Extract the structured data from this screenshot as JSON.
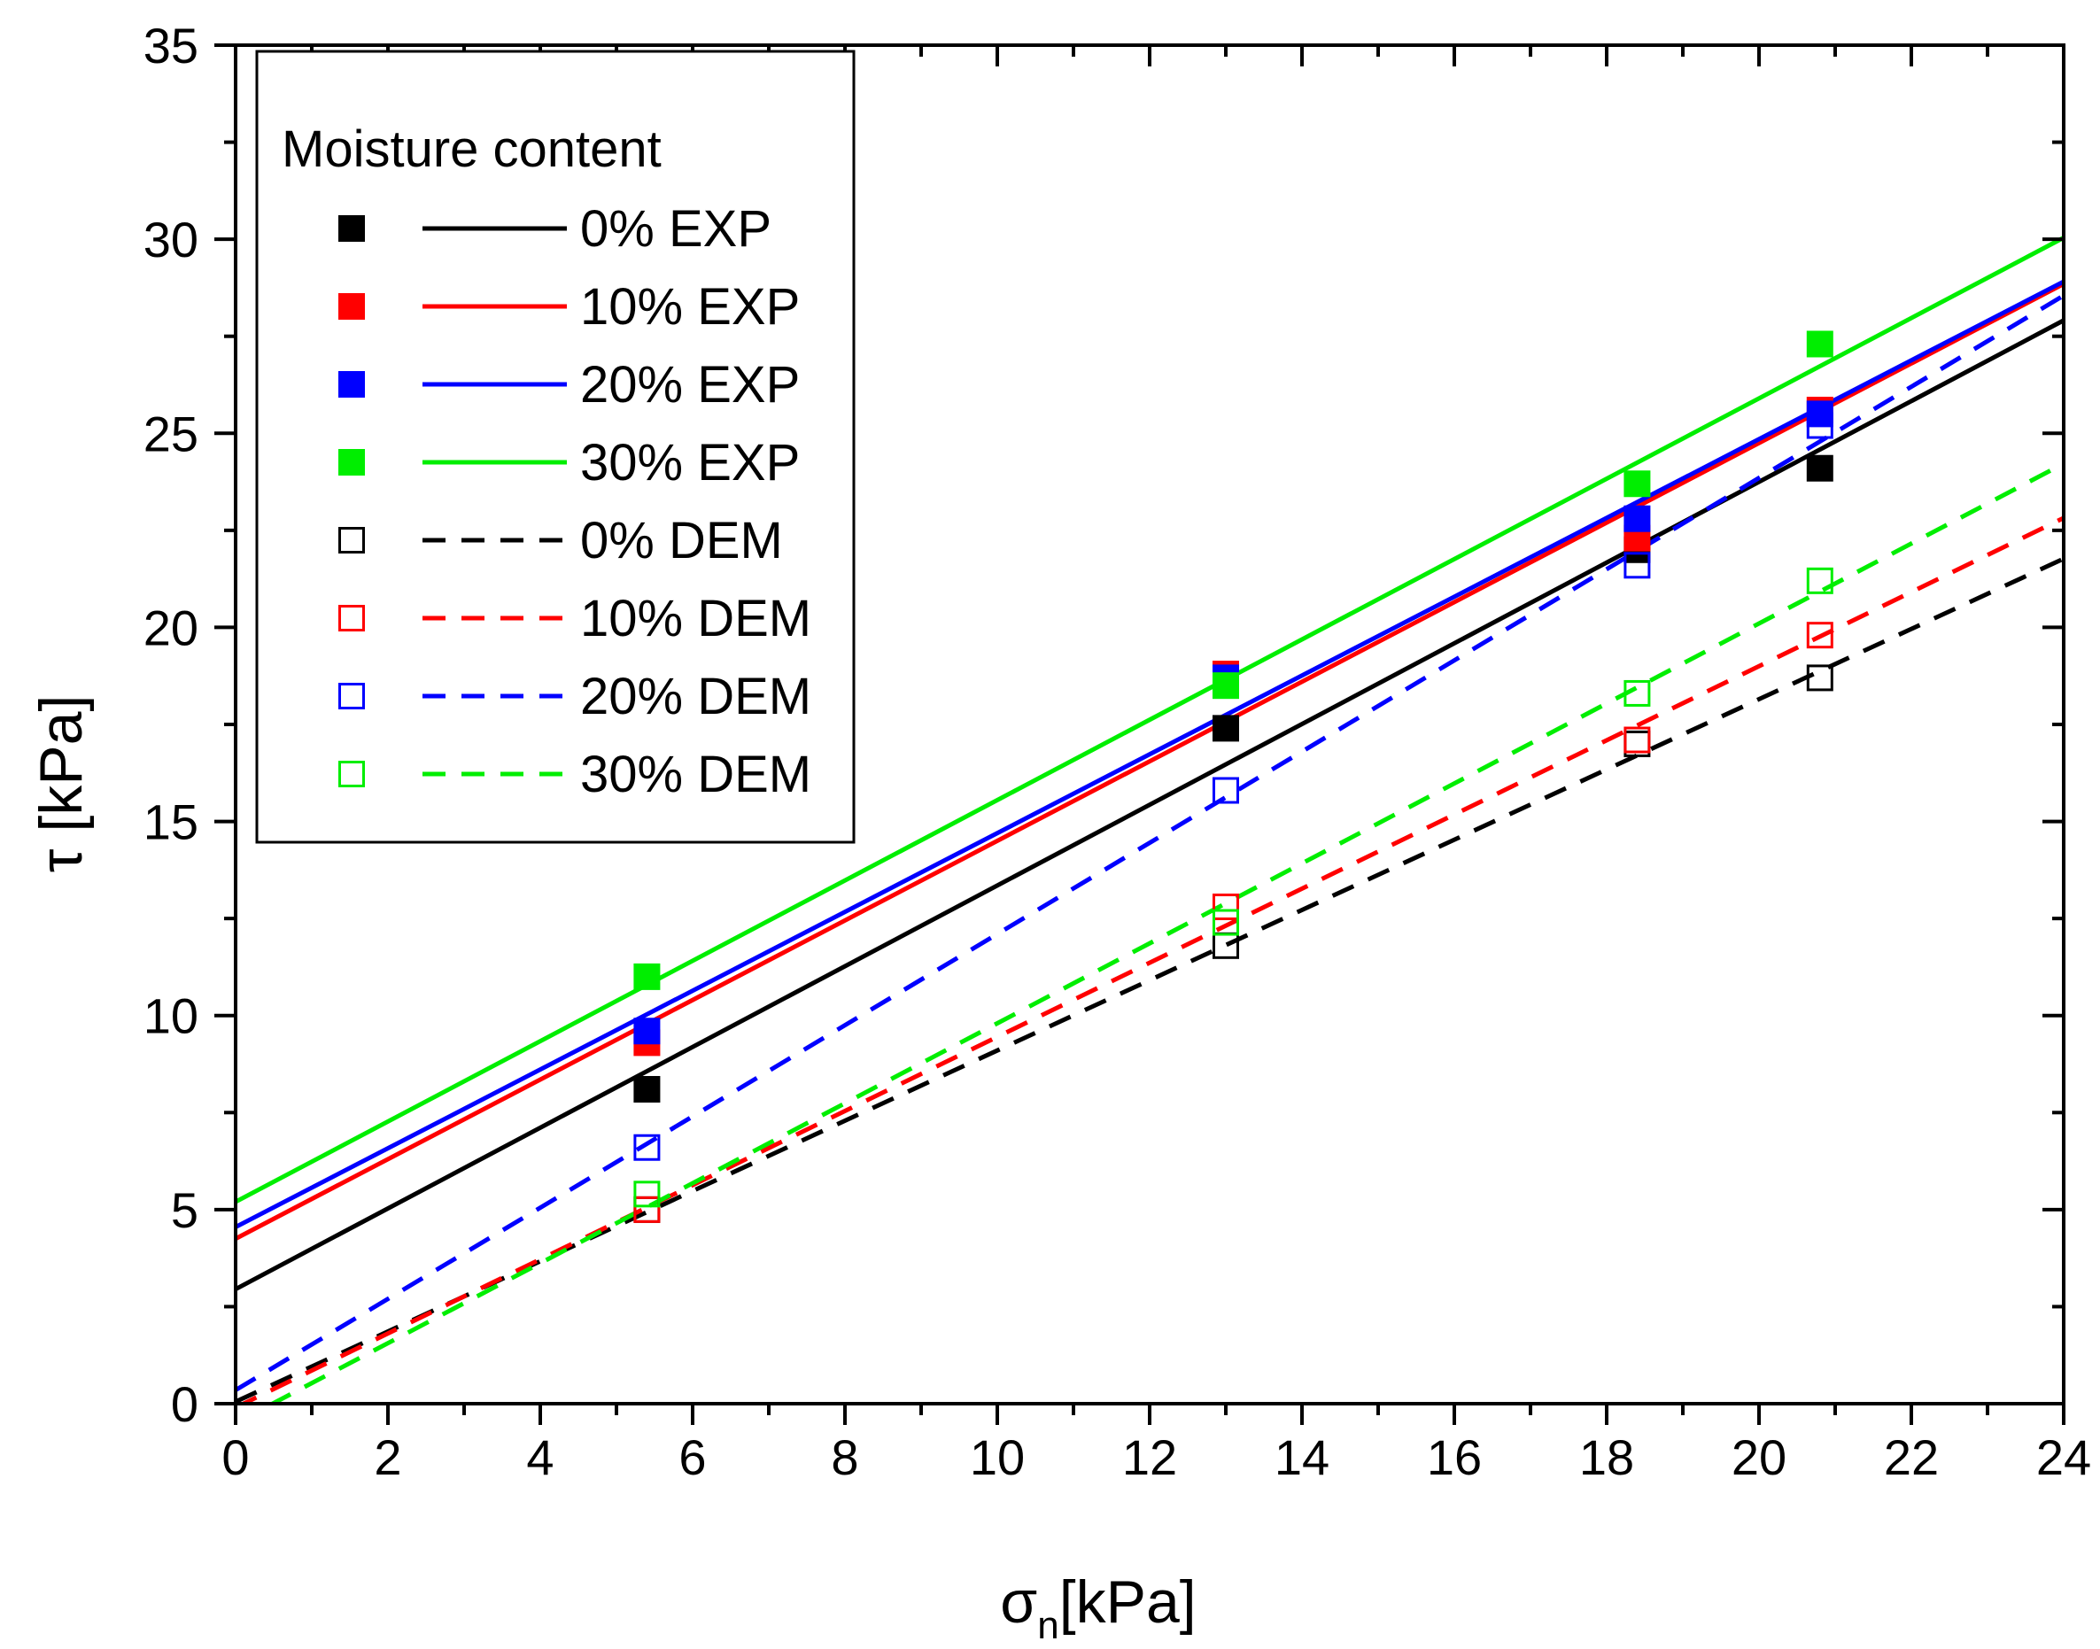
{
  "chart_data": {
    "type": "scatter",
    "title": "",
    "xlabel": "σ",
    "xlabel_sub": "n",
    "xlabel_unit": "[kPa]",
    "ylabel": "τ [kPa]",
    "xlim": [
      0,
      24
    ],
    "ylim": [
      0,
      35
    ],
    "xticks": [
      "0",
      "2",
      "4",
      "6",
      "8",
      "10",
      "12",
      "14",
      "16",
      "18",
      "20",
      "22",
      "24"
    ],
    "yticks": [
      "0",
      "5",
      "10",
      "15",
      "20",
      "25",
      "30",
      "35"
    ],
    "grid": false,
    "legend_position": "top-left",
    "legend_title": "Moisture content",
    "series": [
      {
        "name": "0% EXP",
        "color": "#000000",
        "marker": "filled-square",
        "line": "solid",
        "x": [
          5.4,
          13.0,
          18.4,
          20.8
        ],
        "y": [
          8.1,
          17.4,
          22.0,
          24.1
        ],
        "fit": [
          2.95,
          1.04
        ]
      },
      {
        "name": "10% EXP",
        "color": "#ff0000",
        "marker": "filled-square",
        "line": "solid",
        "x": [
          5.4,
          13.0,
          18.4,
          20.8
        ],
        "y": [
          9.3,
          18.8,
          22.3,
          25.6
        ],
        "fit": [
          4.25,
          1.025
        ]
      },
      {
        "name": "20% EXP",
        "color": "#0000ff",
        "marker": "filled-square",
        "line": "solid",
        "x": [
          5.4,
          13.0,
          18.4,
          20.8
        ],
        "y": [
          9.6,
          18.7,
          22.8,
          25.5
        ],
        "fit": [
          4.55,
          1.015
        ]
      },
      {
        "name": "30% EXP",
        "color": "#00ee00",
        "marker": "filled-square",
        "line": "solid",
        "x": [
          5.4,
          13.0,
          18.4,
          20.8
        ],
        "y": [
          11.0,
          18.5,
          23.7,
          27.3
        ],
        "fit": [
          5.2,
          1.035
        ]
      },
      {
        "name": "0% DEM",
        "color": "#000000",
        "marker": "open-square",
        "line": "dashed",
        "x": [
          5.4,
          13.0,
          18.4,
          20.8
        ],
        "y": [
          5.0,
          11.8,
          17.0,
          18.7
        ],
        "fit": [
          0.05,
          0.905
        ]
      },
      {
        "name": "10% DEM",
        "color": "#ff0000",
        "marker": "open-square",
        "line": "dashed",
        "x": [
          5.4,
          13.0,
          18.4,
          20.8
        ],
        "y": [
          5.0,
          12.8,
          17.1,
          19.8
        ],
        "fit": [
          -0.1,
          0.955
        ]
      },
      {
        "name": "20% DEM",
        "color": "#0000ff",
        "marker": "open-square",
        "line": "dashed",
        "x": [
          5.4,
          13.0,
          18.4,
          20.8
        ],
        "y": [
          6.6,
          15.8,
          21.6,
          25.2
        ],
        "fit": [
          0.35,
          1.175
        ]
      },
      {
        "name": "30% DEM",
        "color": "#00ee00",
        "marker": "open-square",
        "line": "dashed",
        "x": [
          5.4,
          13.0,
          18.4,
          20.8
        ],
        "y": [
          5.4,
          12.4,
          18.3,
          21.2
        ],
        "fit": [
          -0.5,
          1.03
        ]
      }
    ]
  }
}
